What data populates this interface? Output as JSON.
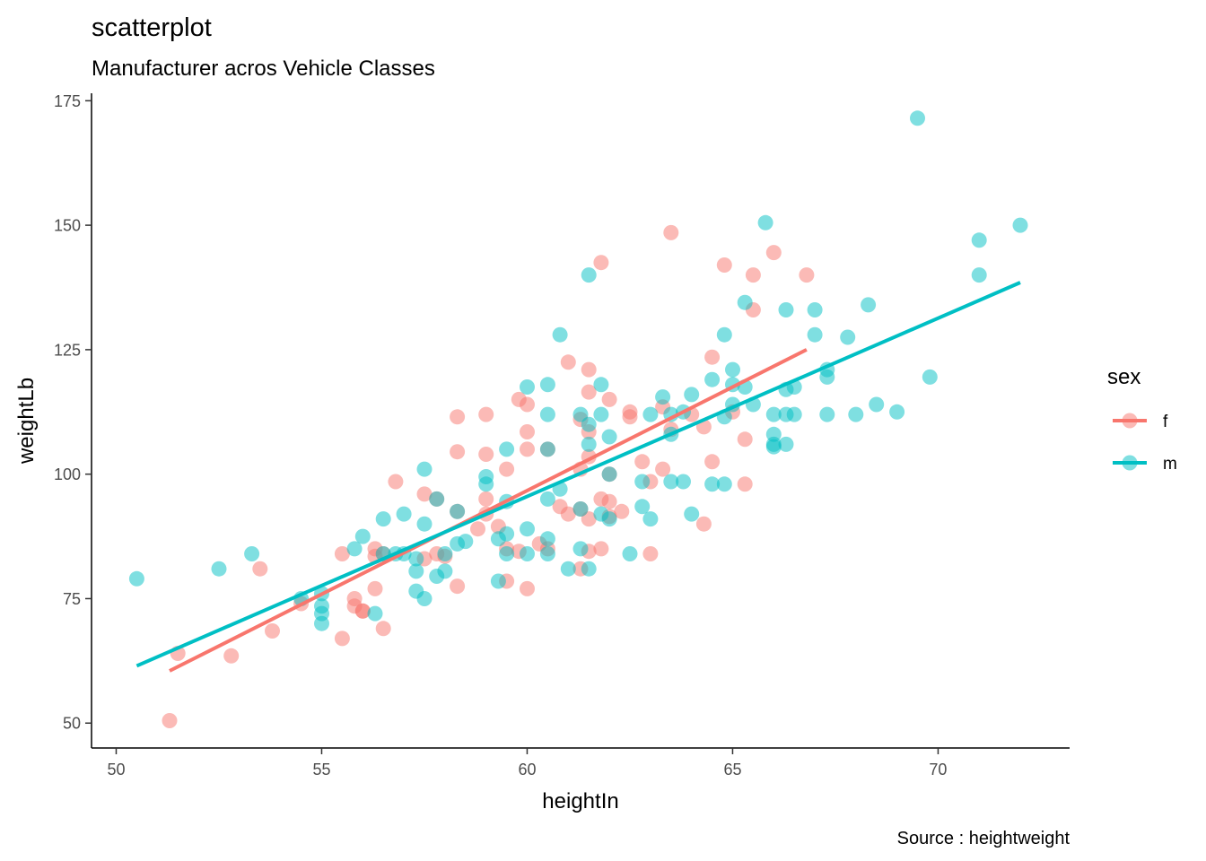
{
  "chart_data": {
    "type": "scatter",
    "title": "scatterplot",
    "subtitle": "Manufacturer acros Vehicle Classes",
    "caption": "Source : heightweight",
    "xlabel": "heightIn",
    "ylabel": "weightLb",
    "xlim": [
      49.4,
      73.2
    ],
    "ylim": [
      45,
      176.5
    ],
    "xticks": [
      50,
      55,
      60,
      65,
      70
    ],
    "yticks": [
      50,
      75,
      100,
      125,
      150,
      175
    ],
    "grid": false,
    "legend": {
      "title": "sex",
      "position": "right"
    },
    "series": [
      {
        "name": "f",
        "color": "#F8766D",
        "trend": [
          [
            51.3,
            60.5
          ],
          [
            66.8,
            125
          ]
        ],
        "points": [
          [
            51.3,
            50.5
          ],
          [
            51.5,
            64
          ],
          [
            52.8,
            63.5
          ],
          [
            53.5,
            81
          ],
          [
            53.8,
            68.5
          ],
          [
            54.5,
            74
          ],
          [
            55.5,
            84
          ],
          [
            55.5,
            67
          ],
          [
            55.8,
            75
          ],
          [
            55.8,
            73.5
          ],
          [
            56,
            72.5
          ],
          [
            56,
            72.5
          ],
          [
            56.3,
            77
          ],
          [
            56.3,
            83.5
          ],
          [
            56.3,
            85
          ],
          [
            56.5,
            84
          ],
          [
            56.5,
            69
          ],
          [
            56.8,
            98.5
          ],
          [
            57.5,
            96
          ],
          [
            57.5,
            83
          ],
          [
            57.8,
            95
          ],
          [
            57.8,
            84
          ],
          [
            58,
            83.5
          ],
          [
            58.3,
            77.5
          ],
          [
            58.3,
            92.5
          ],
          [
            58.3,
            104.5
          ],
          [
            58.3,
            111.5
          ],
          [
            58.8,
            89
          ],
          [
            59,
            92
          ],
          [
            59,
            95
          ],
          [
            59,
            104
          ],
          [
            59,
            112
          ],
          [
            59.3,
            89.5
          ],
          [
            59.5,
            78.5
          ],
          [
            59.5,
            85
          ],
          [
            59.5,
            101
          ],
          [
            59.8,
            115
          ],
          [
            59.8,
            84.5
          ],
          [
            60,
            77
          ],
          [
            60,
            105
          ],
          [
            60,
            108.5
          ],
          [
            60,
            114
          ],
          [
            60.3,
            86
          ],
          [
            60.5,
            105
          ],
          [
            60.5,
            85
          ],
          [
            60.8,
            93.5
          ],
          [
            61,
            122.5
          ],
          [
            61,
            92
          ],
          [
            61.3,
            111
          ],
          [
            61.3,
            101
          ],
          [
            61.3,
            93
          ],
          [
            61.3,
            81
          ],
          [
            61.5,
            121
          ],
          [
            61.5,
            116.5
          ],
          [
            61.5,
            103.5
          ],
          [
            61.5,
            84.5
          ],
          [
            61.5,
            91
          ],
          [
            61.5,
            108.5
          ],
          [
            61.8,
            142.5
          ],
          [
            61.8,
            85
          ],
          [
            61.8,
            95
          ],
          [
            62,
            115
          ],
          [
            62,
            100
          ],
          [
            62,
            94.5
          ],
          [
            62,
            91.5
          ],
          [
            62.3,
            92.5
          ],
          [
            62.5,
            112.5
          ],
          [
            62.5,
            111.5
          ],
          [
            62.8,
            102.5
          ],
          [
            63,
            84
          ],
          [
            63,
            98.5
          ],
          [
            63.3,
            113.5
          ],
          [
            63.3,
            101
          ],
          [
            63.5,
            148.5
          ],
          [
            63.5,
            109
          ],
          [
            64,
            112
          ],
          [
            64.3,
            109.5
          ],
          [
            64.3,
            90
          ],
          [
            64.5,
            123.5
          ],
          [
            64.5,
            102.5
          ],
          [
            64.8,
            142
          ],
          [
            65,
            112.5
          ],
          [
            65.3,
            107
          ],
          [
            65.3,
            98
          ],
          [
            65.5,
            133
          ],
          [
            65.5,
            140
          ],
          [
            66,
            144.5
          ],
          [
            66.8,
            140
          ]
        ]
      },
      {
        "name": "m",
        "color": "#00BFC4",
        "trend": [
          [
            50.5,
            61.5
          ],
          [
            72,
            138.5
          ]
        ],
        "points": [
          [
            50.5,
            79
          ],
          [
            52.5,
            81
          ],
          [
            53.3,
            84
          ],
          [
            54.5,
            75
          ],
          [
            55,
            76
          ],
          [
            55,
            73.5
          ],
          [
            55,
            70
          ],
          [
            55,
            72
          ],
          [
            55.8,
            85
          ],
          [
            56,
            87.5
          ],
          [
            56.3,
            72
          ],
          [
            56.5,
            84
          ],
          [
            56.5,
            91
          ],
          [
            56.8,
            84
          ],
          [
            57,
            84
          ],
          [
            57,
            92
          ],
          [
            57.3,
            83
          ],
          [
            57.3,
            80.5
          ],
          [
            57.3,
            76.5
          ],
          [
            57.5,
            101
          ],
          [
            57.5,
            90
          ],
          [
            57.5,
            75
          ],
          [
            57.8,
            79.5
          ],
          [
            57.8,
            95
          ],
          [
            58,
            80.5
          ],
          [
            58,
            84
          ],
          [
            58.3,
            92.5
          ],
          [
            58.3,
            86
          ],
          [
            58.5,
            86.5
          ],
          [
            59,
            98
          ],
          [
            59,
            99.5
          ],
          [
            59.3,
            78.5
          ],
          [
            59.3,
            87
          ],
          [
            59.5,
            84
          ],
          [
            59.5,
            88
          ],
          [
            59.5,
            94.5
          ],
          [
            59.5,
            105
          ],
          [
            60,
            117.5
          ],
          [
            60,
            89
          ],
          [
            60,
            84
          ],
          [
            60.5,
            87
          ],
          [
            60.5,
            84
          ],
          [
            60.5,
            95
          ],
          [
            60.5,
            105
          ],
          [
            60.5,
            112
          ],
          [
            60.5,
            118
          ],
          [
            60.8,
            97
          ],
          [
            60.8,
            128
          ],
          [
            61,
            81
          ],
          [
            61.3,
            112
          ],
          [
            61.3,
            85
          ],
          [
            61.3,
            93
          ],
          [
            61.5,
            81
          ],
          [
            61.5,
            140
          ],
          [
            61.5,
            106
          ],
          [
            61.5,
            110
          ],
          [
            61.8,
            118
          ],
          [
            61.8,
            112
          ],
          [
            61.8,
            92
          ],
          [
            62,
            107.5
          ],
          [
            62,
            100
          ],
          [
            62,
            91
          ],
          [
            62.5,
            84
          ],
          [
            62.8,
            93.5
          ],
          [
            62.8,
            98.5
          ],
          [
            63,
            91
          ],
          [
            63,
            112
          ],
          [
            63.3,
            115.5
          ],
          [
            63.5,
            112
          ],
          [
            63.5,
            108
          ],
          [
            63.5,
            98.5
          ],
          [
            63.8,
            98.5
          ],
          [
            63.8,
            112.5
          ],
          [
            64,
            116
          ],
          [
            64,
            92
          ],
          [
            64.5,
            98
          ],
          [
            64.5,
            119
          ],
          [
            64.8,
            128
          ],
          [
            64.8,
            98
          ],
          [
            64.8,
            111.5
          ],
          [
            65,
            121
          ],
          [
            65,
            114
          ],
          [
            65,
            118
          ],
          [
            65.3,
            134.5
          ],
          [
            65.3,
            117.5
          ],
          [
            65.5,
            114
          ],
          [
            65.8,
            150.5
          ],
          [
            66,
            112
          ],
          [
            66,
            108
          ],
          [
            66,
            105.5
          ],
          [
            66,
            106
          ],
          [
            66.3,
            133
          ],
          [
            66.3,
            117
          ],
          [
            66.3,
            112
          ],
          [
            66.3,
            106
          ],
          [
            66.5,
            112
          ],
          [
            66.5,
            117.5
          ],
          [
            67,
            133
          ],
          [
            67,
            128
          ],
          [
            67.3,
            112
          ],
          [
            67.3,
            119.5
          ],
          [
            67.3,
            121
          ],
          [
            67.8,
            127.5
          ],
          [
            68,
            112
          ],
          [
            68.3,
            134
          ],
          [
            68.5,
            114
          ],
          [
            69,
            112.5
          ],
          [
            69.5,
            171.5
          ],
          [
            69.8,
            119.5
          ],
          [
            71,
            147
          ],
          [
            71,
            140
          ],
          [
            72,
            150
          ]
        ]
      }
    ]
  }
}
